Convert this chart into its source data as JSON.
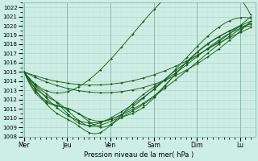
{
  "title": "",
  "xlabel": "Pression niveau de la mer( hPa )",
  "ylabel": "",
  "bg_color": "#cceee4",
  "grid_color_major": "#aaccbb",
  "grid_color_minor": "#c0e0d8",
  "line_color": "#1a5c1a",
  "marker_color": "#1a5c1a",
  "ylim": [
    1008,
    1022.5
  ],
  "yticks": [
    1008,
    1009,
    1010,
    1011,
    1012,
    1013,
    1014,
    1015,
    1016,
    1017,
    1018,
    1019,
    1020,
    1021,
    1022
  ],
  "day_labels": [
    "Mer",
    "Jeu",
    "Ven",
    "Sam",
    "Dim",
    "Lu"
  ],
  "day_positions": [
    0,
    48,
    96,
    144,
    192,
    240
  ],
  "xlim": [
    -2,
    257
  ],
  "vline_positions": [
    0,
    48,
    96,
    144,
    192,
    240
  ],
  "vline_color": "#88bbaa"
}
